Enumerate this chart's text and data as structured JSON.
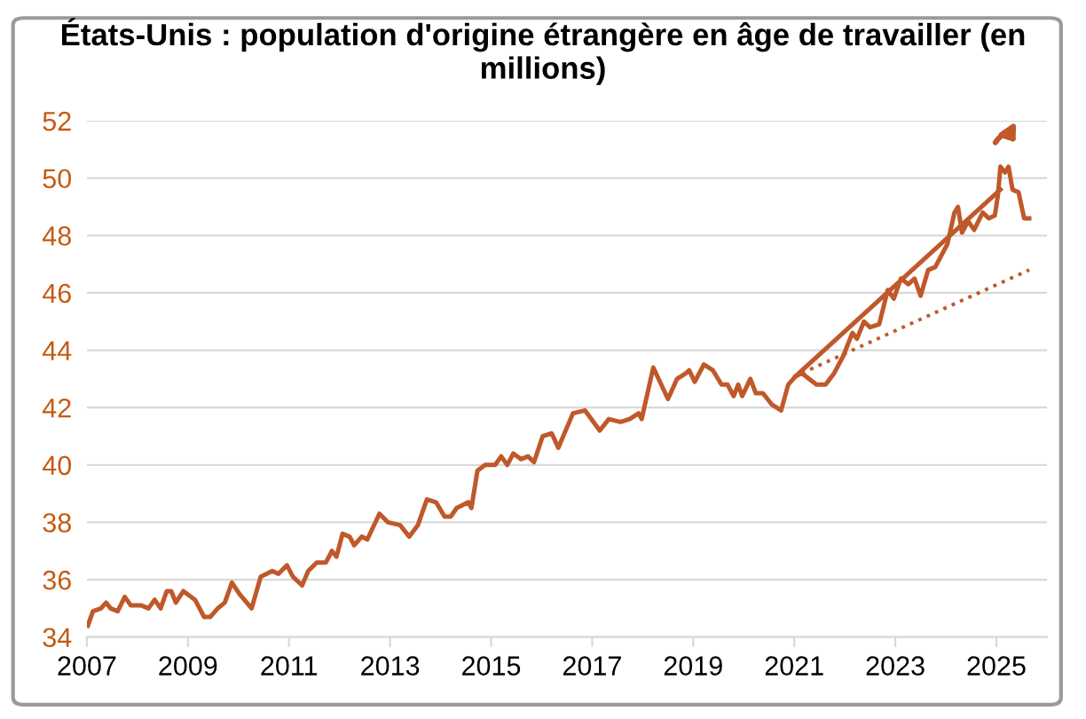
{
  "chart_data": {
    "type": "line",
    "title": "États-Unis : population d'origine étrangère en âge de travailler (en millions)",
    "xlim": [
      2007,
      2026
    ],
    "xticks": [
      2007,
      2009,
      2011,
      2013,
      2015,
      2017,
      2019,
      2021,
      2023,
      2025
    ],
    "ylim": [
      34,
      52
    ],
    "yticks": [
      34,
      36,
      38,
      40,
      42,
      44,
      46,
      48,
      50,
      52
    ],
    "grid": "y",
    "legend": false,
    "marker": "none",
    "series": [
      {
        "color": "#c0582a",
        "line_style": "solid",
        "x": [
          2007.02,
          2007.12,
          2007.28,
          2007.38,
          2007.47,
          2007.61,
          2007.75,
          2007.87,
          2008.08,
          2008.22,
          2008.34,
          2008.46,
          2008.58,
          2008.67,
          2008.76,
          2008.91,
          2009.14,
          2009.32,
          2009.44,
          2009.59,
          2009.73,
          2009.87,
          2010.02,
          2010.26,
          2010.44,
          2010.67,
          2010.79,
          2010.96,
          2011.08,
          2011.26,
          2011.38,
          2011.55,
          2011.73,
          2011.85,
          2011.94,
          2012.06,
          2012.2,
          2012.29,
          2012.44,
          2012.55,
          2012.79,
          2012.96,
          2013.2,
          2013.38,
          2013.55,
          2013.73,
          2013.91,
          2014.08,
          2014.2,
          2014.32,
          2014.55,
          2014.61,
          2014.73,
          2014.88,
          2015.08,
          2015.2,
          2015.32,
          2015.44,
          2015.59,
          2015.73,
          2015.85,
          2016.02,
          2016.2,
          2016.33,
          2016.62,
          2016.86,
          2017.15,
          2017.33,
          2017.56,
          2017.74,
          2017.92,
          2017.98,
          2018.21,
          2018.5,
          2018.68,
          2018.86,
          2018.92,
          2019.03,
          2019.21,
          2019.39,
          2019.56,
          2019.68,
          2019.8,
          2019.89,
          2019.97,
          2020.13,
          2020.24,
          2020.38,
          2020.56,
          2020.74,
          2020.88,
          2021.03,
          2021.15,
          2021.44,
          2021.62,
          2021.79,
          2021.97,
          2022.15,
          2022.24,
          2022.38,
          2022.5,
          2022.68,
          2022.85,
          2022.97,
          2023.11,
          2023.26,
          2023.38,
          2023.5,
          2023.65,
          2023.79,
          2024.03,
          2024.17,
          2024.24,
          2024.32,
          2024.44,
          2024.56,
          2024.73,
          2024.85,
          2024.97,
          2025.03,
          2025.08,
          2025.17,
          2025.24,
          2025.32,
          2025.44,
          2025.55,
          2025.65
        ],
        "values": [
          34.4,
          34.9,
          35.0,
          35.2,
          35.0,
          34.9,
          35.4,
          35.1,
          35.1,
          35.0,
          35.3,
          35.0,
          35.6,
          35.6,
          35.2,
          35.6,
          35.3,
          34.7,
          34.7,
          35.0,
          35.2,
          35.9,
          35.5,
          35.0,
          36.1,
          36.3,
          36.2,
          36.5,
          36.1,
          35.8,
          36.3,
          36.6,
          36.6,
          37.0,
          36.8,
          37.6,
          37.5,
          37.2,
          37.5,
          37.4,
          38.3,
          38.0,
          37.9,
          37.5,
          37.9,
          38.8,
          38.7,
          38.2,
          38.2,
          38.5,
          38.7,
          38.5,
          39.8,
          40.0,
          40.0,
          40.3,
          40.0,
          40.4,
          40.2,
          40.3,
          40.1,
          41.0,
          41.1,
          40.6,
          41.8,
          41.9,
          41.2,
          41.6,
          41.5,
          41.6,
          41.8,
          41.6,
          43.4,
          42.3,
          43.0,
          43.2,
          43.3,
          42.9,
          43.5,
          43.3,
          42.8,
          42.8,
          42.4,
          42.8,
          42.4,
          43.0,
          42.5,
          42.5,
          42.1,
          41.9,
          42.8,
          43.1,
          43.2,
          42.8,
          42.8,
          43.2,
          43.8,
          44.6,
          44.4,
          45.0,
          44.8,
          44.9,
          46.1,
          45.8,
          46.5,
          46.3,
          46.5,
          45.9,
          46.8,
          46.9,
          47.7,
          48.8,
          49.0,
          48.1,
          48.5,
          48.2,
          48.8,
          48.6,
          48.7,
          49.4,
          50.4,
          50.2,
          50.4,
          49.6,
          49.5,
          48.6,
          48.6
        ]
      },
      {
        "color": "#c0582a",
        "line_style": "solid",
        "x": [
          2021.03,
          2025.08
        ],
        "values": [
          43.1,
          49.6
        ]
      },
      {
        "color": "#c0582a",
        "line_style": "dotted",
        "x": [
          2021.15,
          2025.65
        ],
        "values": [
          43.2,
          46.8
        ]
      }
    ]
  }
}
